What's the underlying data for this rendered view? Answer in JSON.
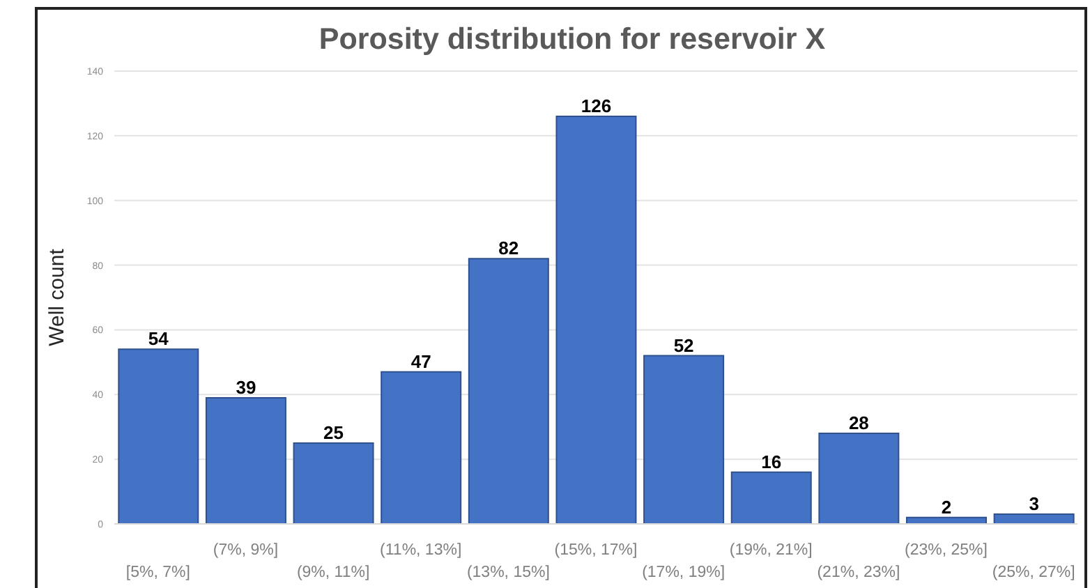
{
  "chart_data": {
    "type": "bar",
    "title": "Porosity distribution for reservoir X",
    "ylabel": "Well count",
    "categories": [
      "[5%, 7%]",
      "(7%, 9%]",
      "(9%, 11%]",
      "(11%, 13%]",
      "(13%, 15%]",
      "(15%, 17%]",
      "(17%, 19%]",
      "(19%, 21%]",
      "(21%, 23%]",
      "(23%, 25%]",
      "(25%, 27%]"
    ],
    "values": [
      54,
      39,
      25,
      47,
      82,
      126,
      52,
      16,
      28,
      2,
      3
    ],
    "color": "#4472c4",
    "ylim": [
      0,
      140
    ],
    "yticks": [
      0,
      20,
      40,
      60,
      80,
      100,
      120,
      140
    ],
    "grid": "y",
    "data_labels": true
  }
}
